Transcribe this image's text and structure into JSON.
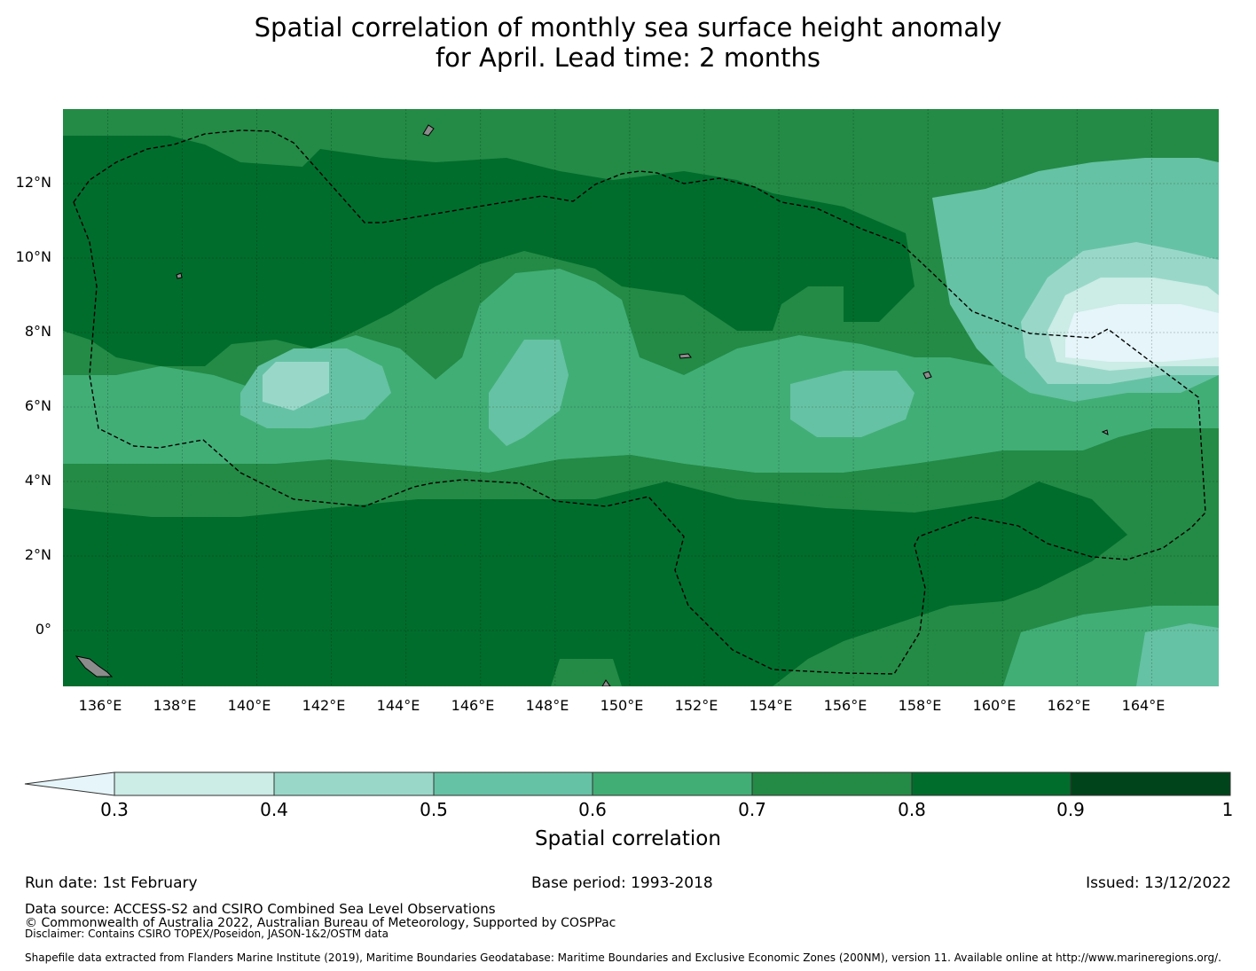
{
  "title": {
    "line1": "Spatial correlation of monthly sea surface height anomaly",
    "line2": "for April. Lead time: 2 months"
  },
  "map": {
    "lat_ticks": [
      "12°N",
      "10°N",
      "8°N",
      "6°N",
      "4°N",
      "2°N",
      "0°"
    ],
    "lon_ticks": [
      "136°E",
      "138°E",
      "140°E",
      "142°E",
      "144°E",
      "146°E",
      "148°E",
      "150°E",
      "152°E",
      "154°E",
      "156°E",
      "158°E",
      "160°E",
      "162°E",
      "164°E"
    ],
    "lon_range": [
      134.8,
      165.8
    ],
    "lat_range": [
      -1.5,
      14.0
    ],
    "boundary_style": "dashed",
    "land_color": "#8c8c8c"
  },
  "colorbar": {
    "label": "Spatial correlation",
    "ticks": [
      "0.3",
      "0.4",
      "0.5",
      "0.6",
      "0.7",
      "0.8",
      "0.9",
      "1"
    ],
    "colors": [
      "#e5f5f9",
      "#ccece6",
      "#99d8c9",
      "#66c2a4",
      "#41ae76",
      "#238b45",
      "#006d2c",
      "#00441b"
    ],
    "extend": "min"
  },
  "footer": {
    "run_date": "Run date: 1st February",
    "base_period": "Base period: 1993-2018",
    "issued": "Issued: 13/12/2022",
    "data_source": "Data source: ACCESS-S2 and CSIRO Combined Sea Level Observations",
    "copyright": "© Commonwealth of Australia 2022, Australian Bureau of Meteorology, Supported by COSPPac",
    "disclaimer": "Disclaimer: Contains CSIRO TOPEX/Poseidon, JASON-1&2/OSTM data",
    "shapefile": "Shapefile data extracted from Flanders Marine Institute (2019), Maritime Boundaries Geodatabase: Maritime Boundaries and Exclusive Economic Zones (200NM), version 11. Available online at http://www.marineregions.org/."
  }
}
